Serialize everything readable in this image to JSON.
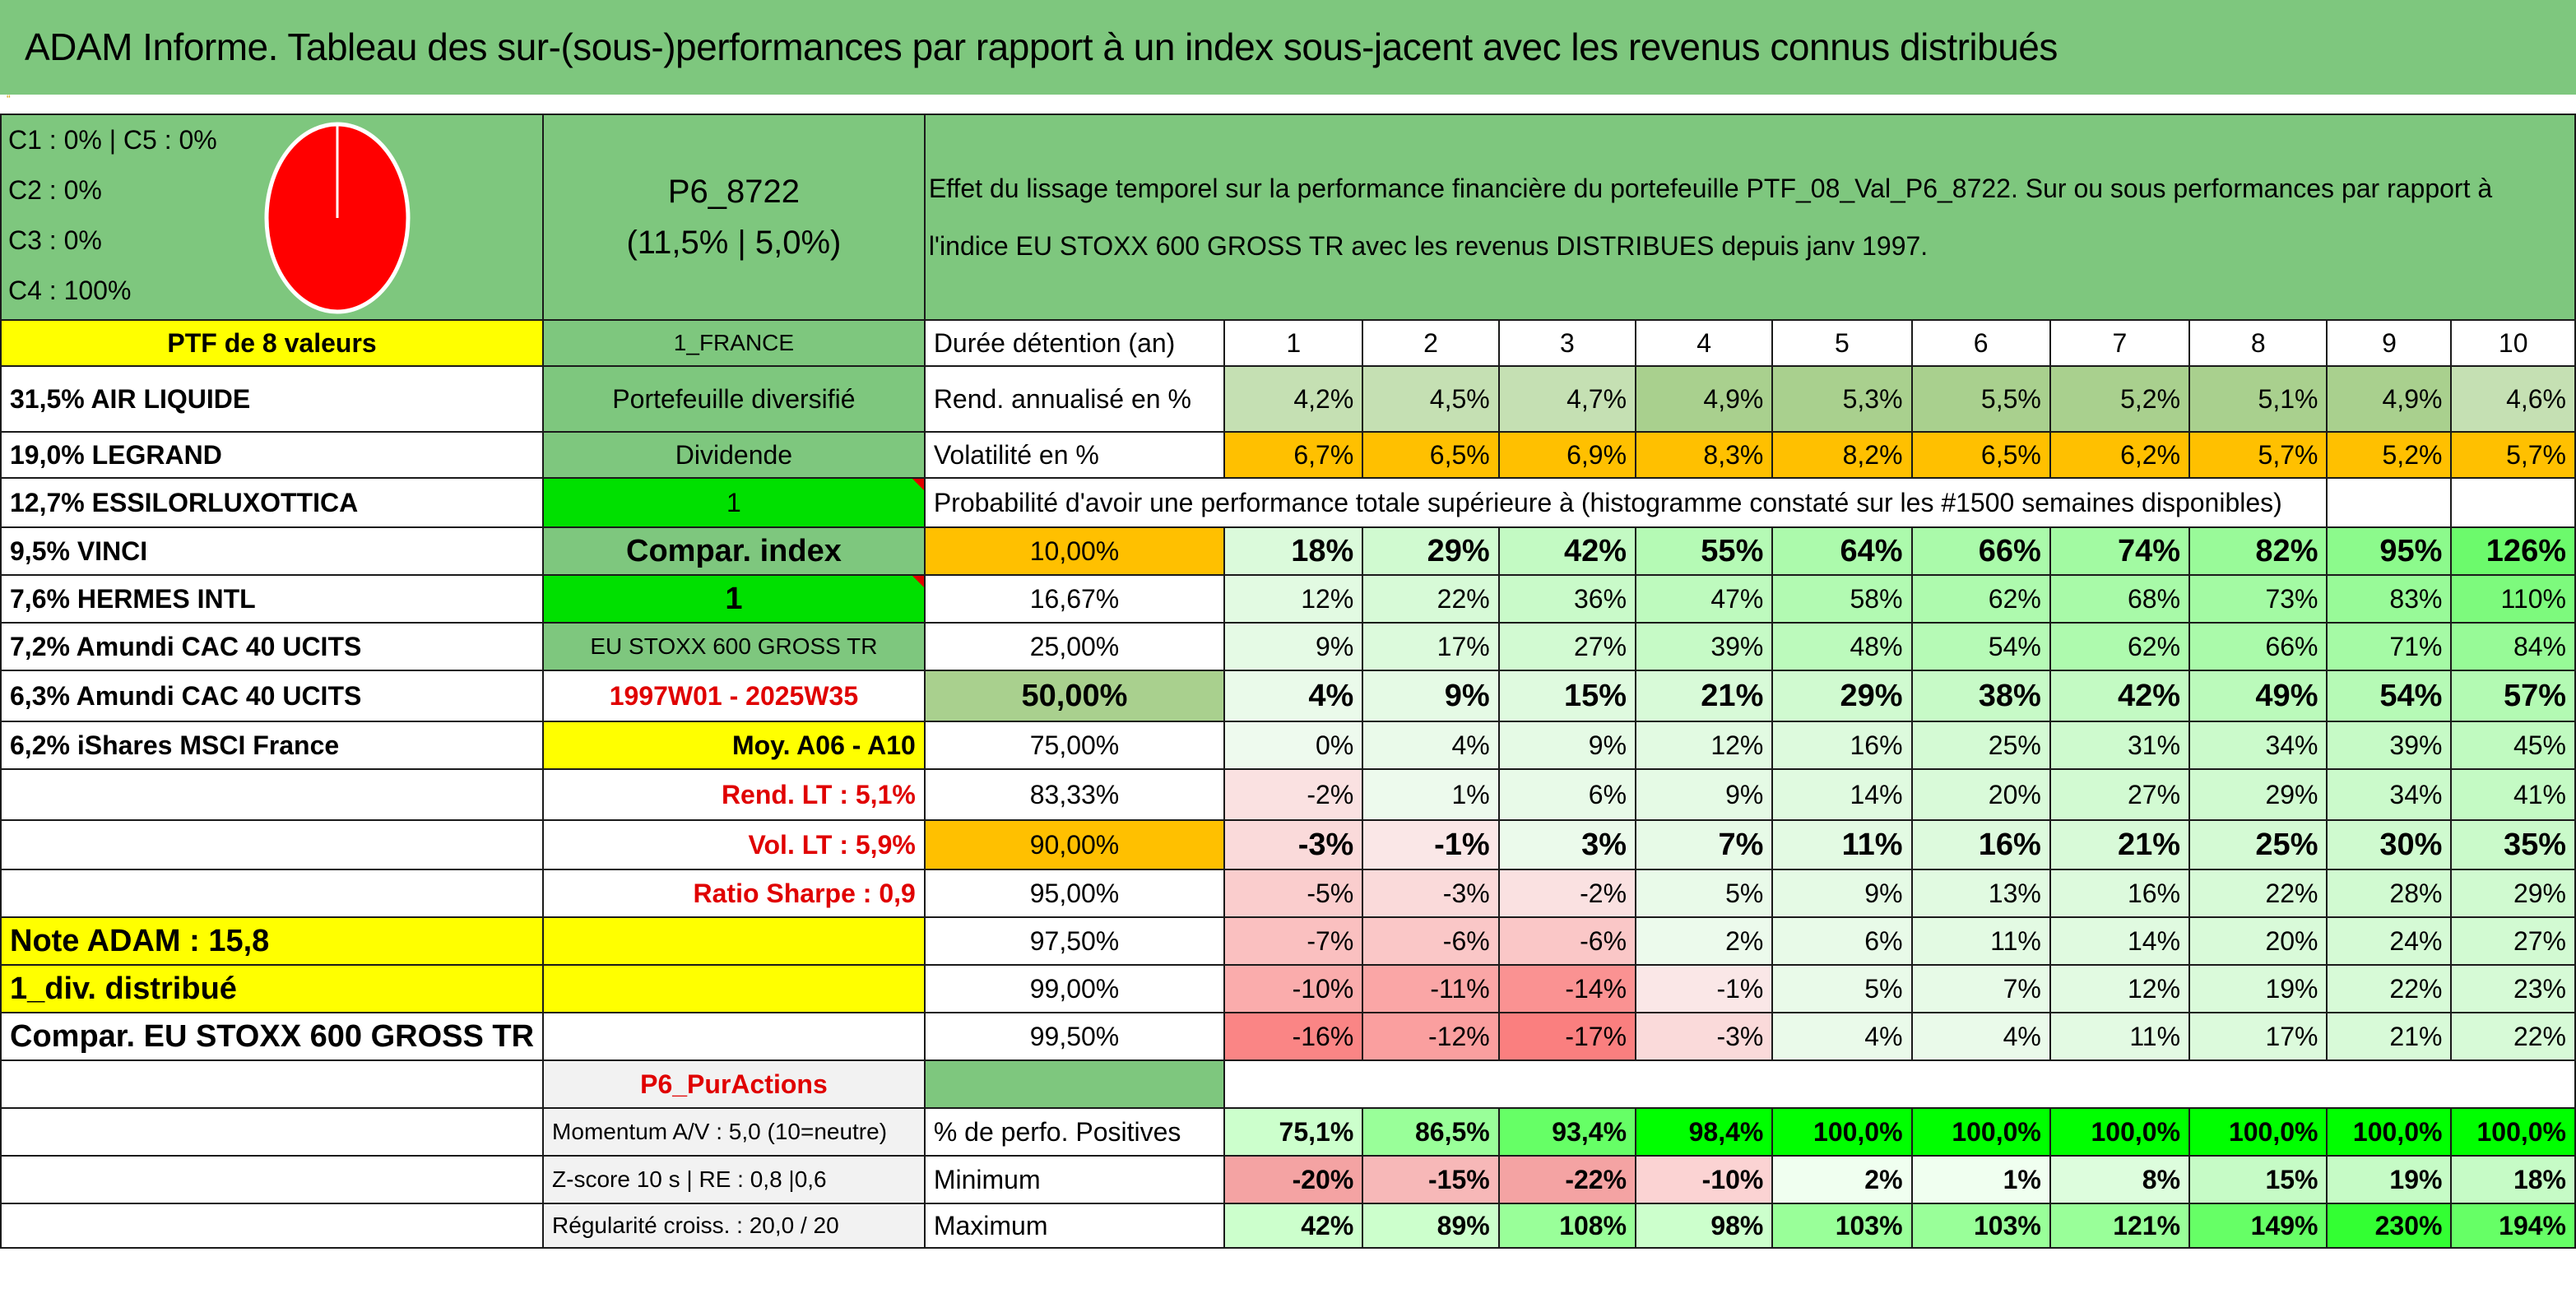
{
  "title": "ADAM Informe. Tableau des sur-(sous-)performances par rapport à un index sous-jacent avec les revenus connus distribués",
  "title_mark": "“",
  "legend": [
    "C1 : 0% | C5 : 0%",
    "C2 : 0%",
    "C3 : 0%",
    "C4 : 100%"
  ],
  "pie_color": "#ff0000",
  "portfolio": {
    "name": "P6_8722",
    "stats": "(11,5% | 5,0%)"
  },
  "description": "Effet du lissage temporel sur la performance financière du portefeuille PTF_08_Val_P6_8722. Sur ou sous performances par rapport à l'indice EU STOXX 600 GROSS TR avec les revenus DISTRIBUES depuis janv 1997.",
  "holdings_header": "PTF de 8 valeurs",
  "holdings": [
    "31,5% AIR LIQUIDE",
    "19,0% LEGRAND",
    "12,7% ESSILORLUXOTTICA",
    "9,5% VINCI",
    "7,6% HERMES INTL",
    "7,2% Amundi CAC 40 UCITS",
    "6,3% Amundi CAC 40 UCITS",
    "6,2% iShares MSCI France"
  ],
  "params": {
    "country": "1_FRANCE",
    "type": "Portefeuille diversifié",
    "dividend_label": "Dividende",
    "dividend_value": "1",
    "compar_label": "Compar. index",
    "compar_value": "1",
    "index_name": "EU STOXX 600 GROSS TR",
    "period": "1997W01 - 2025W35",
    "moy": "Moy. A06 - A10",
    "rend_lt": "Rend. LT : 5,1%",
    "vol_lt": "Vol. LT : 5,9%",
    "sharpe": "Ratio Sharpe : 0,9",
    "note": "Note ADAM : 15,8",
    "div_distrib": "1_div. distribué",
    "compar_index": "Compar. EU STOXX 600 GROSS TR",
    "pur_actions": "P6_PurActions",
    "momentum": "Momentum A/V : 5,0 (10=neutre)",
    "zscore": "Z-score 10 s | RE : 0,8 |0,6",
    "regularite": "Régularité croiss. : 20,0 / 20"
  },
  "table": {
    "duration_label": "Durée détention (an)",
    "years": [
      "1",
      "2",
      "3",
      "4",
      "5",
      "6",
      "7",
      "8",
      "9",
      "10"
    ],
    "rend_label": "Rend. annualisé en %",
    "rend": [
      "4,2%",
      "4,5%",
      "4,7%",
      "4,9%",
      "5,3%",
      "5,5%",
      "5,2%",
      "5,1%",
      "4,9%",
      "4,6%"
    ],
    "vol_label": "Volatilité en %",
    "vol": [
      "6,7%",
      "6,5%",
      "6,9%",
      "8,3%",
      "8,2%",
      "6,5%",
      "6,2%",
      "5,7%",
      "5,2%",
      "5,7%"
    ],
    "prob_label": "Probabilité d'avoir une performance totale supérieure à (histogramme constaté sur les #1500 semaines disponibles)",
    "prob_rows": [
      {
        "p": "10,00%",
        "v": [
          "18%",
          "29%",
          "42%",
          "55%",
          "64%",
          "66%",
          "74%",
          "82%",
          "95%",
          "126%"
        ]
      },
      {
        "p": "16,67%",
        "v": [
          "12%",
          "22%",
          "36%",
          "47%",
          "58%",
          "62%",
          "68%",
          "73%",
          "83%",
          "110%"
        ]
      },
      {
        "p": "25,00%",
        "v": [
          "9%",
          "17%",
          "27%",
          "39%",
          "48%",
          "54%",
          "62%",
          "66%",
          "71%",
          "84%"
        ]
      },
      {
        "p": "50,00%",
        "v": [
          "4%",
          "9%",
          "15%",
          "21%",
          "29%",
          "38%",
          "42%",
          "49%",
          "54%",
          "57%"
        ]
      },
      {
        "p": "75,00%",
        "v": [
          "0%",
          "4%",
          "9%",
          "12%",
          "16%",
          "25%",
          "31%",
          "34%",
          "39%",
          "45%"
        ]
      },
      {
        "p": "83,33%",
        "v": [
          "-2%",
          "1%",
          "6%",
          "9%",
          "14%",
          "20%",
          "27%",
          "29%",
          "34%",
          "41%"
        ]
      },
      {
        "p": "90,00%",
        "v": [
          "-3%",
          "-1%",
          "3%",
          "7%",
          "11%",
          "16%",
          "21%",
          "25%",
          "30%",
          "35%"
        ]
      },
      {
        "p": "95,00%",
        "v": [
          "-5%",
          "-3%",
          "-2%",
          "5%",
          "9%",
          "13%",
          "16%",
          "22%",
          "28%",
          "29%"
        ]
      },
      {
        "p": "97,50%",
        "v": [
          "-7%",
          "-6%",
          "-6%",
          "2%",
          "6%",
          "11%",
          "14%",
          "20%",
          "24%",
          "27%"
        ]
      },
      {
        "p": "99,00%",
        "v": [
          "-10%",
          "-11%",
          "-14%",
          "-1%",
          "5%",
          "7%",
          "12%",
          "19%",
          "22%",
          "23%"
        ]
      },
      {
        "p": "99,50%",
        "v": [
          "-16%",
          "-12%",
          "-17%",
          "-3%",
          "4%",
          "4%",
          "11%",
          "17%",
          "21%",
          "22%"
        ]
      }
    ],
    "pos_label": "% de perfo. Positives",
    "pos": [
      "75,1%",
      "86,5%",
      "93,4%",
      "98,4%",
      "100,0%",
      "100,0%",
      "100,0%",
      "100,0%",
      "100,0%",
      "100,0%"
    ],
    "min_label": "Minimum",
    "min": [
      "-20%",
      "-15%",
      "-22%",
      "-10%",
      "2%",
      "1%",
      "8%",
      "15%",
      "19%",
      "18%"
    ],
    "max_label": "Maximum",
    "max": [
      "42%",
      "89%",
      "108%",
      "98%",
      "103%",
      "103%",
      "121%",
      "149%",
      "230%",
      "194%"
    ]
  }
}
